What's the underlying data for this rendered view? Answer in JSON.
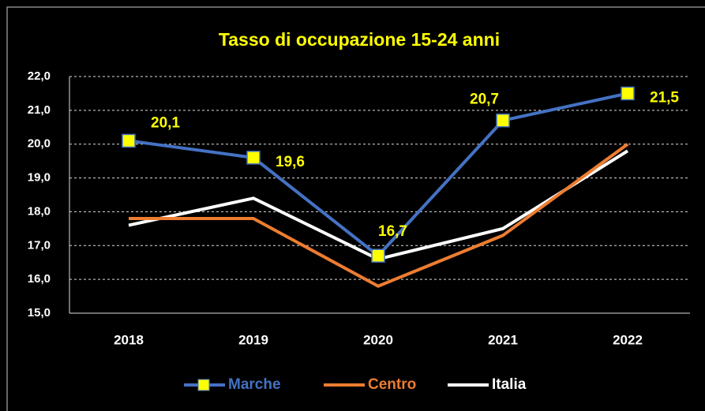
{
  "chart_data": {
    "type": "line",
    "title": "Tasso di occupazione 15-24 anni",
    "categories": [
      "2018",
      "2019",
      "2020",
      "2021",
      "2022"
    ],
    "series": [
      {
        "name": "Marche",
        "color": "#4472c4",
        "marker_color": "#ffff00",
        "values": [
          20.1,
          19.6,
          16.7,
          20.7,
          21.5
        ],
        "value_labels": [
          "20,1",
          "19,6",
          "16,7",
          "20,7",
          "21,5"
        ]
      },
      {
        "name": "Centro",
        "color": "#ed7d31",
        "values": [
          17.8,
          17.8,
          15.8,
          17.3,
          20.0
        ]
      },
      {
        "name": "Italia",
        "color": "#ffffff",
        "values": [
          17.6,
          18.4,
          16.6,
          17.5,
          19.8
        ]
      }
    ],
    "ylim": [
      15,
      22
    ],
    "yticks": [
      {
        "value": 15,
        "label": "15,0"
      },
      {
        "value": 16,
        "label": "16,0"
      },
      {
        "value": 17,
        "label": "17,0"
      },
      {
        "value": 18,
        "label": "18,0"
      },
      {
        "value": 19,
        "label": "19,0"
      },
      {
        "value": 20,
        "label": "20,0"
      },
      {
        "value": 21,
        "label": "21,0"
      },
      {
        "value": 22,
        "label": "22,0"
      }
    ],
    "grid": true,
    "legend": "bottom"
  }
}
